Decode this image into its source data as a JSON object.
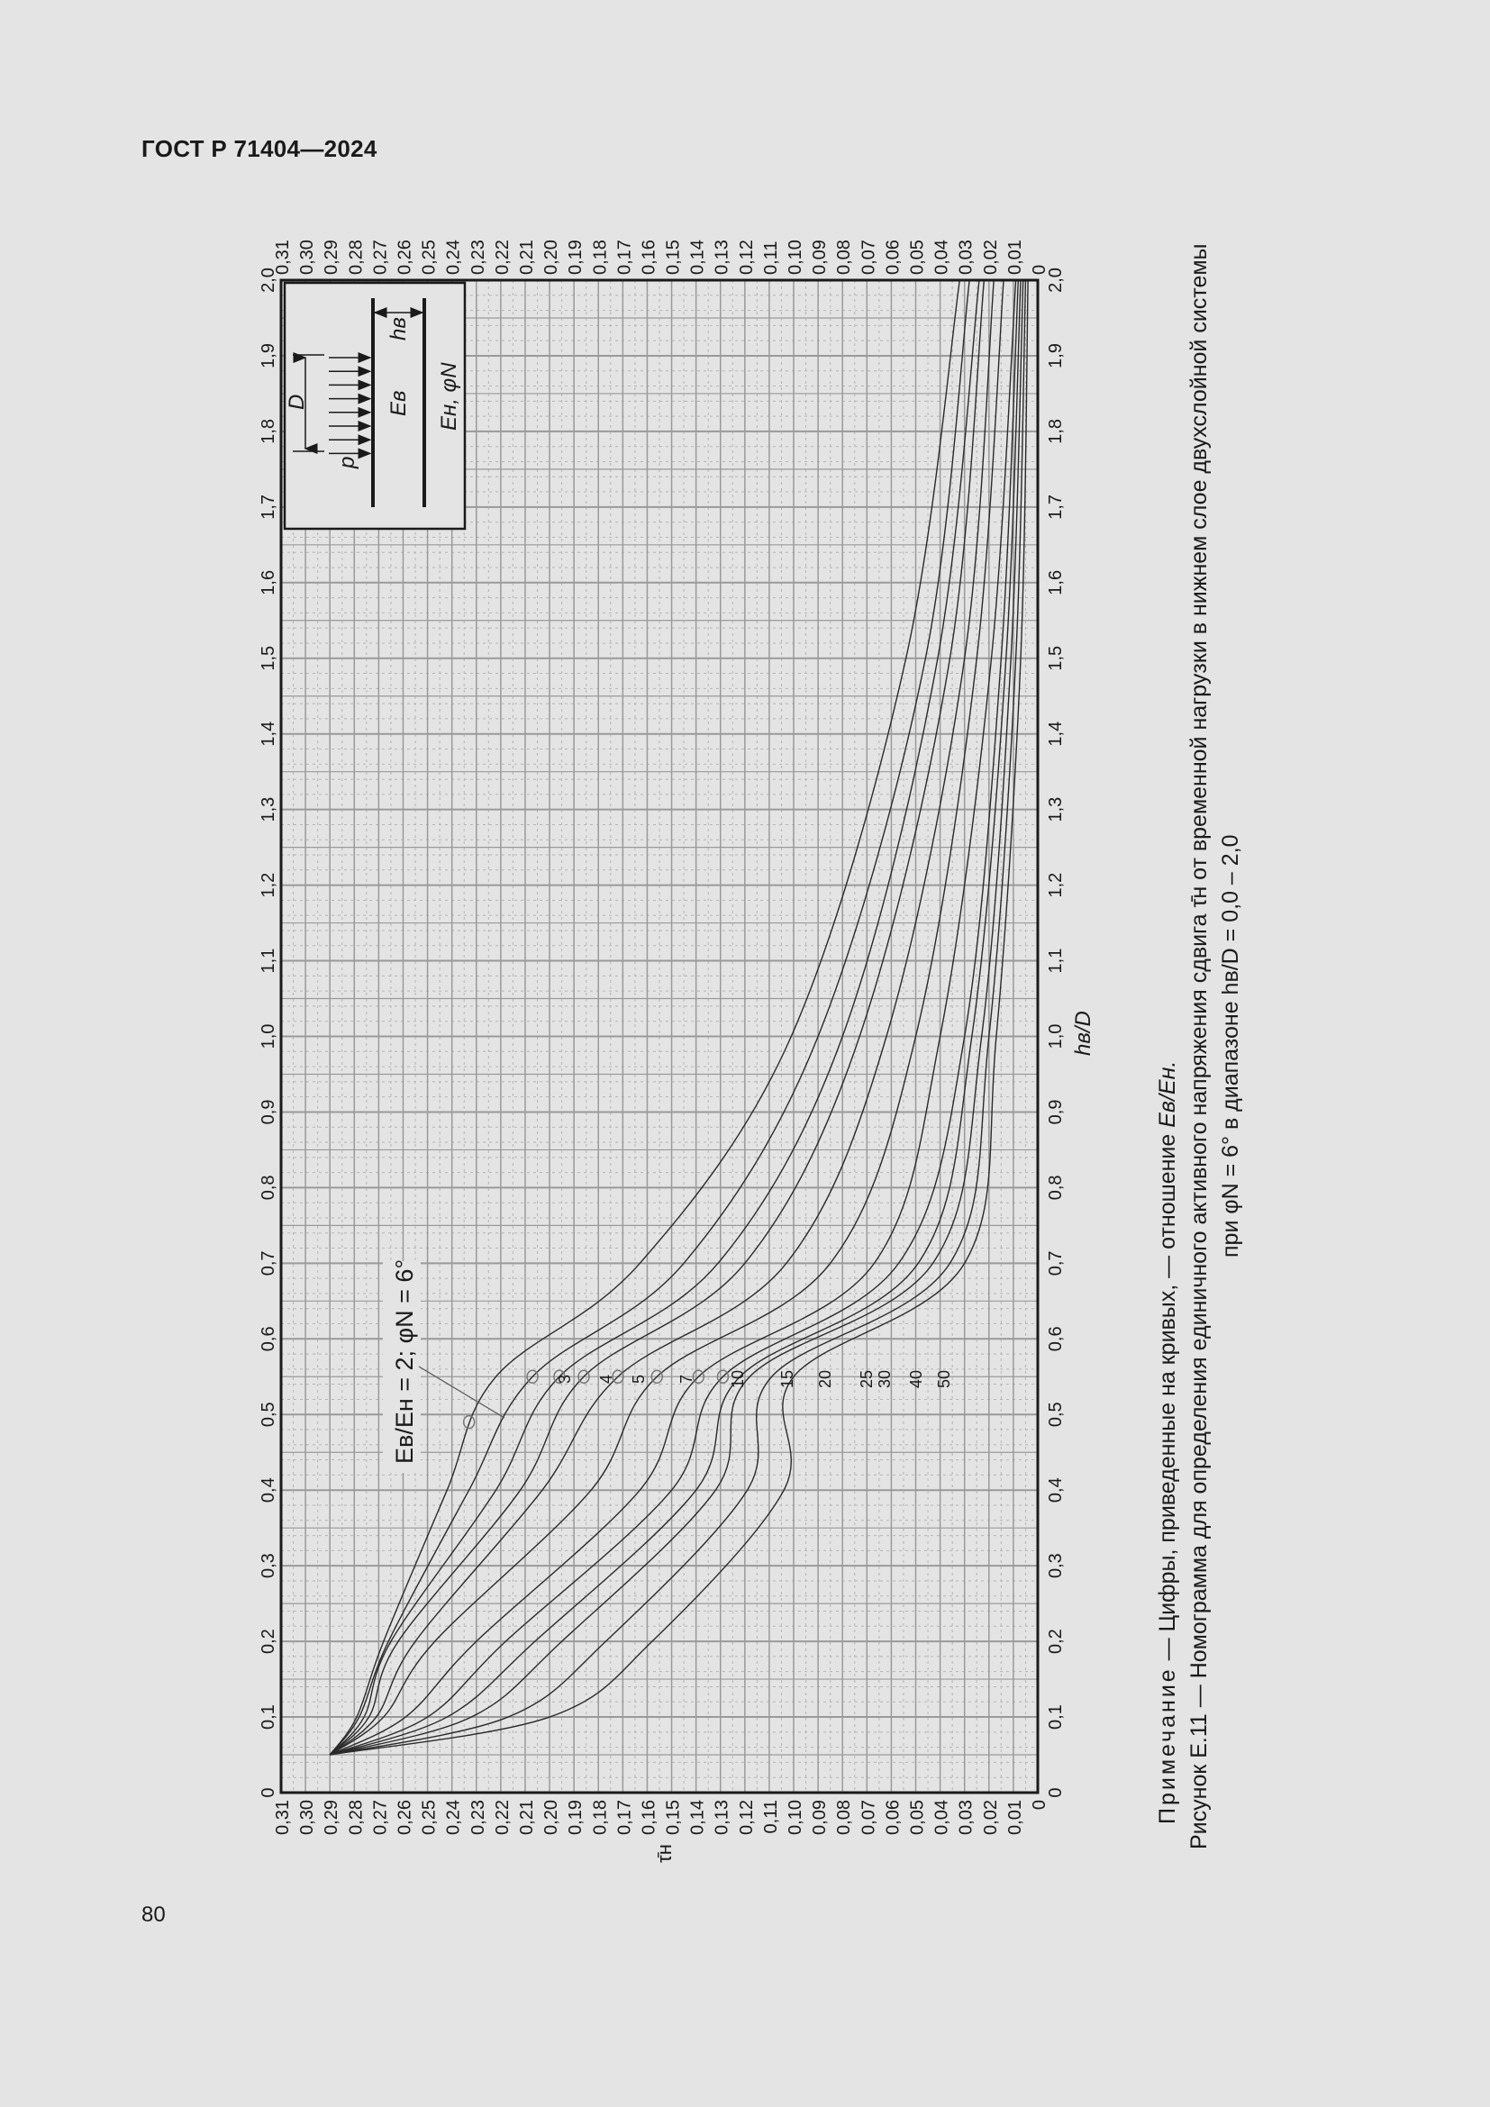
{
  "document": {
    "header": "ГОСТ Р 71404—2024",
    "page_number": "80"
  },
  "figure": {
    "note_prefix": "Примечание",
    "note_text": " — Цифры, приведенные на кривых, — отношение ",
    "note_ratio": "Eв/Eн.",
    "caption_line1": "Рисунок Е.11 — Номограмма для определения единичного активного напряжения сдвига τ̄н от временной нагрузки в нижнем слое двухслойной системы",
    "caption_line2": "при φN = 6° в диапазоне hв/D = 0,0 – 2,0",
    "annotation": "Eв/Eн = 2; φN = 6°",
    "axis_tau_label": "τ̄н",
    "axis_h_label": "hв/D",
    "inset": {
      "load_label": "p",
      "diameter_label": "D",
      "thickness_label": "hв",
      "upper_layer_label": "Eв",
      "lower_layer_label": "Eн, φN"
    }
  },
  "chart_data": {
    "type": "line",
    "title": "Номограмма для определения единичного активного напряжения сдвига τ̄н от временной нагрузки в нижнем слое двухслойной системы при φN = 6° в диапазоне hв/D = 0,0 – 2,0",
    "orientation": "rotated 90° counter-clockwise on page",
    "xlabel": "hв/D",
    "ylabel": "τ̄н",
    "xlim": [
      0,
      2.0
    ],
    "ylim": [
      0,
      0.31
    ],
    "x_ticks": [
      "0",
      "0,1",
      "0,2",
      "0,3",
      "0,4",
      "0,5",
      "0,6",
      "0,7",
      "0,8",
      "0,9",
      "1,0",
      "1,1",
      "1,2",
      "1,3",
      "1,4",
      "1,5",
      "1,6",
      "1,7",
      "1,8",
      "1,9",
      "2,0"
    ],
    "y_ticks": [
      "0",
      "0,01",
      "0,02",
      "0,03",
      "0,04",
      "0,05",
      "0,06",
      "0,07",
      "0,08",
      "0,09",
      "0,10",
      "0,11",
      "0,12",
      "0,13",
      "0,14",
      "0,15",
      "0,16",
      "0,17",
      "0,18",
      "0,19",
      "0,20",
      "0,21",
      "0,22",
      "0,23",
      "0,24",
      "0,25",
      "0,26",
      "0,27",
      "0,28",
      "0,29",
      "0,30",
      "0,31"
    ],
    "grid": true,
    "legend": "curve labels = Eв/Eн",
    "x": [
      0.05,
      0.1,
      0.2,
      0.4,
      0.55,
      0.7,
      1.0,
      1.5,
      2.0
    ],
    "series": [
      {
        "name": "2",
        "values": [
          0.29,
          0.279,
          0.268,
          0.242,
          0.222,
          0.163,
          0.101,
          0.054,
          0.032
        ],
        "marker_at": [
          0.49,
          0.233
        ]
      },
      {
        "name": "3",
        "values": [
          0.29,
          0.278,
          0.266,
          0.233,
          0.207,
          0.145,
          0.09,
          0.046,
          0.028
        ],
        "marker_at": [
          0.55,
          0.207
        ]
      },
      {
        "name": "4",
        "values": [
          0.29,
          0.276,
          0.265,
          0.222,
          0.196,
          0.131,
          0.08,
          0.041,
          0.024
        ],
        "marker_at": [
          0.55,
          0.196
        ]
      },
      {
        "name": "5",
        "values": [
          0.29,
          0.274,
          0.262,
          0.212,
          0.186,
          0.12,
          0.073,
          0.036,
          0.022
        ],
        "marker_at": [
          0.55,
          0.186
        ]
      },
      {
        "name": "7",
        "values": [
          0.29,
          0.271,
          0.255,
          0.203,
          0.172,
          0.103,
          0.062,
          0.03,
          0.018
        ],
        "marker_at": [
          0.55,
          0.172
        ]
      },
      {
        "name": "10",
        "values": [
          0.29,
          0.268,
          0.247,
          0.183,
          0.156,
          0.085,
          0.05,
          0.025,
          0.014
        ],
        "marker_at": [
          0.55,
          0.156
        ]
      },
      {
        "name": "15",
        "values": [
          0.29,
          0.259,
          0.23,
          0.163,
          0.139,
          0.067,
          0.04,
          0.019,
          0.009
        ],
        "marker_at": [
          0.55,
          0.139
        ]
      },
      {
        "name": "20",
        "values": [
          0.29,
          0.25,
          0.218,
          0.15,
          0.129,
          0.057,
          0.03,
          0.015,
          0.008
        ],
        "marker_at": [
          0.55,
          0.129
        ]
      },
      {
        "name": "25",
        "values": [
          0.29,
          0.242,
          0.206,
          0.14,
          0.122,
          0.049,
          0.027,
          0.013,
          0.007
        ]
      },
      {
        "name": "30",
        "values": [
          0.29,
          0.232,
          0.195,
          0.132,
          0.118,
          0.043,
          0.023,
          0.011,
          0.006
        ]
      },
      {
        "name": "40",
        "values": [
          0.29,
          0.217,
          0.177,
          0.119,
          0.109,
          0.036,
          0.02,
          0.009,
          0.005
        ]
      },
      {
        "name": "50",
        "values": [
          0.29,
          0.2,
          0.158,
          0.104,
          0.1,
          0.03,
          0.017,
          0.007,
          0.004
        ]
      }
    ]
  }
}
